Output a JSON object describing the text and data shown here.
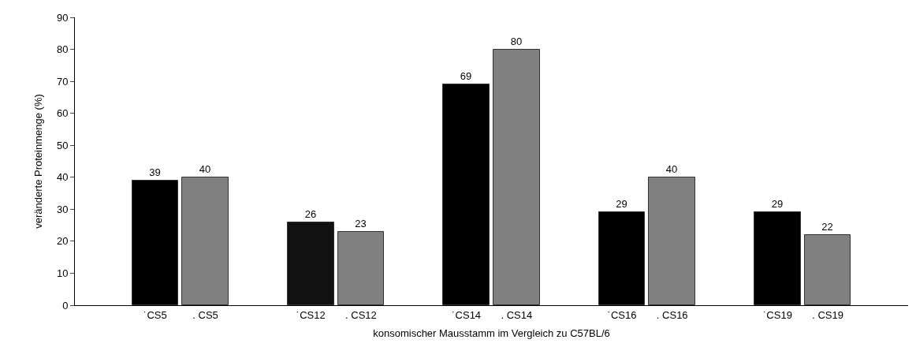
{
  "chart_data": {
    "type": "bar",
    "xlabel": "konsomischer Mausstamm im Vergleich zu C57BL/6",
    "ylabel": "veränderte Proteinmenge (%)",
    "categories": [
      "˙CS5",
      ". CS5",
      "˙CS12",
      ". CS12",
      "˙CS14",
      ". CS14",
      "˙CS16",
      ". CS16",
      "˙CS19",
      ". CS19"
    ],
    "values": [
      39,
      40,
      26,
      23,
      69,
      80,
      29,
      40,
      29,
      22
    ],
    "colors": [
      "#000000",
      "#808080",
      "#111111",
      "#808080",
      "#000000",
      "#808080",
      "#000000",
      "#808080",
      "#000000",
      "#808080"
    ],
    "ylim": [
      0,
      90
    ],
    "yticks": [
      0,
      10,
      20,
      30,
      40,
      50,
      60,
      70,
      80,
      90
    ],
    "data_labels": true
  }
}
